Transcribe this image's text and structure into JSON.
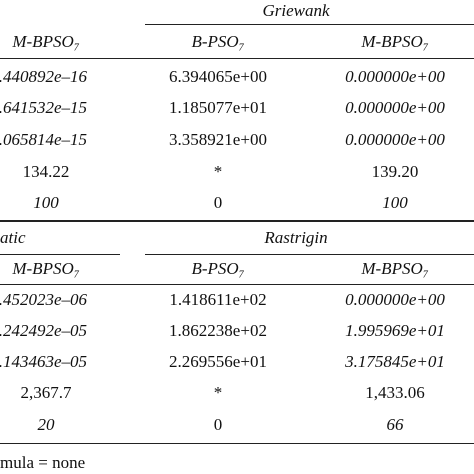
{
  "table": {
    "sections": [
      {
        "titles": [
          "Griewank"
        ],
        "header": [
          "M-BPSO₇",
          "B-PSO₇",
          "M-BPSO₇"
        ],
        "rows": [
          [
            ".440892e–16",
            "6.394065e+00",
            "0.000000e+00"
          ],
          [
            ".641532e–15",
            "1.185077e+01",
            "0.000000e+00"
          ],
          [
            ".065814e–15",
            "3.358921e+00",
            "0.000000e+00"
          ],
          [
            "134.22",
            "*",
            "139.20"
          ],
          [
            "100",
            "0",
            "100"
          ]
        ]
      },
      {
        "titles": [
          "atic",
          "Rastrigin"
        ],
        "header": [
          "M-BPSO₇",
          "B-PSO₇",
          "M-BPSO₇"
        ],
        "rows": [
          [
            ".452023e–06",
            "1.418611e+02",
            "0.000000e+00"
          ],
          [
            ".242492e–05",
            "1.862238e+02",
            "1.995969e+01"
          ],
          [
            ".143463e–05",
            "2.269556e+01",
            "3.175845e+01"
          ],
          [
            "2,367.7",
            "*",
            "1,433.06"
          ],
          [
            "20",
            "0",
            "66"
          ]
        ]
      }
    ],
    "footer": "mula = none"
  }
}
